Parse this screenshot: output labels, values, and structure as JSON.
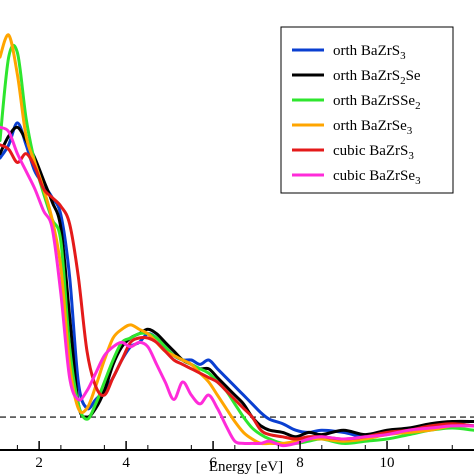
{
  "chart_data": {
    "type": "line",
    "title": "",
    "xlabel": "Energy [eV]",
    "ylabel": "",
    "xlim": [
      1.1,
      12.0
    ],
    "ylim": [
      -0.75,
      9.5
    ],
    "xticks": [
      2,
      4,
      6,
      8,
      10
    ],
    "yticks": [],
    "grid": false,
    "legend_position": "top-right",
    "reference_line": {
      "y": 0,
      "style": "dashed",
      "color": "#000000"
    },
    "series": [
      {
        "name": "orth BaZrS",
        "name_sub": "3",
        "name_tail": "",
        "color": "#0a3fd1",
        "x": [
          1.1,
          1.3,
          1.5,
          1.7,
          1.9,
          2.1,
          2.3,
          2.5,
          2.7,
          2.9,
          3.1,
          3.3,
          3.5,
          3.7,
          3.9,
          4.1,
          4.3,
          4.5,
          4.7,
          4.9,
          5.1,
          5.3,
          5.5,
          5.7,
          5.9,
          6.1,
          6.3,
          6.5,
          6.7,
          6.9,
          7.1,
          7.3,
          7.6,
          7.9,
          8.2,
          8.5,
          9.0,
          9.5,
          10.0,
          10.5,
          11.0,
          11.5,
          12.0
        ],
        "y": [
          5.9,
          6.2,
          6.7,
          6.2,
          5.6,
          5.3,
          5.0,
          4.6,
          3.2,
          0.8,
          0.2,
          0.4,
          0.6,
          0.9,
          1.3,
          1.6,
          1.7,
          1.9,
          1.8,
          1.6,
          1.4,
          1.3,
          1.3,
          1.2,
          1.3,
          1.1,
          0.9,
          0.7,
          0.5,
          0.3,
          0.1,
          -0.05,
          -0.15,
          -0.3,
          -0.35,
          -0.3,
          -0.35,
          -0.45,
          -0.35,
          -0.3,
          -0.2,
          -0.15,
          -0.2
        ]
      },
      {
        "name": "orth BaZrS",
        "name_sub": "2",
        "name_tail": "Se",
        "color": "#000000",
        "x": [
          1.1,
          1.3,
          1.5,
          1.7,
          1.9,
          2.1,
          2.3,
          2.5,
          2.7,
          2.9,
          3.1,
          3.3,
          3.5,
          3.7,
          3.9,
          4.1,
          4.3,
          4.5,
          4.7,
          4.9,
          5.1,
          5.3,
          5.5,
          5.7,
          5.9,
          6.1,
          6.3,
          6.5,
          6.7,
          6.9,
          7.1,
          7.3,
          7.6,
          7.9,
          8.2,
          8.5,
          9.0,
          9.5,
          10.0,
          10.5,
          11.0,
          11.5,
          12.0
        ],
        "y": [
          6.0,
          6.4,
          6.6,
          6.3,
          5.9,
          5.4,
          4.9,
          4.3,
          2.3,
          0.3,
          0.0,
          0.2,
          0.6,
          1.2,
          1.6,
          1.8,
          1.9,
          2.0,
          1.9,
          1.7,
          1.5,
          1.3,
          1.2,
          1.1,
          1.1,
          0.9,
          0.7,
          0.5,
          0.3,
          0.0,
          -0.2,
          -0.3,
          -0.35,
          -0.45,
          -0.35,
          -0.4,
          -0.3,
          -0.4,
          -0.3,
          -0.25,
          -0.15,
          -0.1,
          -0.1
        ]
      },
      {
        "name": "orth BaZrSSe",
        "name_sub": "2",
        "name_tail": "",
        "color": "#2ee62e",
        "x": [
          1.1,
          1.3,
          1.5,
          1.7,
          1.9,
          2.1,
          2.3,
          2.5,
          2.7,
          2.9,
          3.1,
          3.3,
          3.5,
          3.7,
          3.9,
          4.1,
          4.3,
          4.5,
          4.7,
          4.9,
          5.1,
          5.3,
          5.5,
          5.7,
          5.9,
          6.1,
          6.3,
          6.5,
          6.7,
          6.9,
          7.1,
          7.3,
          7.6,
          7.9,
          8.2,
          8.5,
          9.0,
          9.5,
          10.0,
          10.5,
          11.0,
          11.5,
          12.0
        ],
        "y": [
          6.3,
          8.2,
          8.3,
          6.8,
          5.8,
          5.1,
          4.5,
          4.0,
          1.6,
          0.3,
          -0.05,
          0.3,
          0.8,
          1.3,
          1.7,
          1.8,
          1.9,
          1.9,
          1.8,
          1.6,
          1.4,
          1.3,
          1.2,
          1.1,
          1.0,
          0.8,
          0.6,
          0.3,
          0.0,
          -0.25,
          -0.4,
          -0.5,
          -0.6,
          -0.6,
          -0.55,
          -0.5,
          -0.6,
          -0.55,
          -0.5,
          -0.4,
          -0.3,
          -0.25,
          -0.3
        ]
      },
      {
        "name": "orth BaZrSe",
        "name_sub": "3",
        "name_tail": "",
        "color": "#ffa500",
        "x": [
          1.1,
          1.3,
          1.5,
          1.7,
          1.9,
          2.1,
          2.3,
          2.5,
          2.7,
          2.9,
          3.1,
          3.3,
          3.5,
          3.7,
          3.9,
          4.1,
          4.3,
          4.5,
          4.7,
          4.9,
          5.1,
          5.3,
          5.5,
          5.7,
          5.9,
          6.1,
          6.3,
          6.5,
          6.7,
          6.9,
          7.1,
          7.3,
          7.6,
          7.9,
          8.2,
          8.5,
          9.0,
          9.5,
          10.0,
          10.5,
          11.0,
          11.5,
          12.0
        ],
        "y": [
          8.2,
          8.7,
          7.8,
          6.4,
          5.8,
          5.2,
          4.5,
          3.4,
          1.2,
          0.2,
          0.2,
          0.7,
          1.3,
          1.8,
          2.0,
          2.1,
          2.0,
          1.9,
          1.7,
          1.5,
          1.4,
          1.3,
          1.2,
          1.0,
          0.8,
          0.5,
          0.2,
          -0.1,
          -0.35,
          -0.5,
          -0.6,
          -0.6,
          -0.6,
          -0.55,
          -0.5,
          -0.5,
          -0.55,
          -0.5,
          -0.4,
          -0.35,
          -0.3,
          -0.2,
          -0.2
        ]
      },
      {
        "name": "cubic BaZrS",
        "name_sub": "3",
        "name_tail": "",
        "color": "#e41a1a",
        "x": [
          1.1,
          1.3,
          1.5,
          1.7,
          1.9,
          2.1,
          2.3,
          2.5,
          2.7,
          2.9,
          3.1,
          3.3,
          3.5,
          3.7,
          3.9,
          4.1,
          4.3,
          4.5,
          4.7,
          4.9,
          5.1,
          5.3,
          5.5,
          5.7,
          5.9,
          6.1,
          6.3,
          6.5,
          6.7,
          6.9,
          7.1,
          7.3,
          7.6,
          7.9,
          8.2,
          8.5,
          9.0,
          9.5,
          10.0,
          10.5,
          11.0,
          11.5,
          12.0
        ],
        "y": [
          6.2,
          6.1,
          5.8,
          6.0,
          5.7,
          5.2,
          5.0,
          4.8,
          4.4,
          3.2,
          1.5,
          0.7,
          0.5,
          0.9,
          1.3,
          1.7,
          1.8,
          1.8,
          1.7,
          1.5,
          1.3,
          1.2,
          1.1,
          1.0,
          0.9,
          0.8,
          0.6,
          0.4,
          0.2,
          0.0,
          -0.3,
          -0.4,
          -0.45,
          -0.5,
          -0.45,
          -0.45,
          -0.5,
          -0.45,
          -0.35,
          -0.3,
          -0.2,
          -0.15,
          -0.2
        ]
      },
      {
        "name": "cubic BaZrSe",
        "name_sub": "3",
        "name_tail": "",
        "color": "#ff2bd9",
        "x": [
          1.1,
          1.3,
          1.5,
          1.7,
          1.9,
          2.1,
          2.3,
          2.5,
          2.7,
          2.9,
          3.1,
          3.3,
          3.5,
          3.7,
          3.9,
          4.1,
          4.3,
          4.5,
          4.7,
          4.9,
          5.1,
          5.3,
          5.5,
          5.7,
          5.9,
          6.1,
          6.3,
          6.5,
          6.7,
          6.9,
          7.1,
          7.3,
          7.6,
          7.9,
          8.2,
          8.5,
          9.0,
          9.5,
          10.0,
          10.5,
          11.0,
          11.5,
          12.0
        ],
        "y": [
          6.6,
          6.5,
          6.0,
          5.6,
          5.2,
          4.7,
          4.3,
          2.8,
          0.9,
          0.4,
          0.6,
          1.0,
          1.4,
          1.6,
          1.7,
          1.6,
          1.7,
          1.6,
          1.2,
          0.8,
          0.4,
          0.8,
          0.5,
          0.3,
          0.5,
          0.2,
          -0.2,
          -0.55,
          -0.6,
          -0.6,
          -0.6,
          -0.55,
          -0.65,
          -0.6,
          -0.5,
          -0.45,
          -0.5,
          -0.45,
          -0.4,
          -0.3,
          -0.25,
          -0.2,
          -0.2
        ]
      }
    ]
  }
}
